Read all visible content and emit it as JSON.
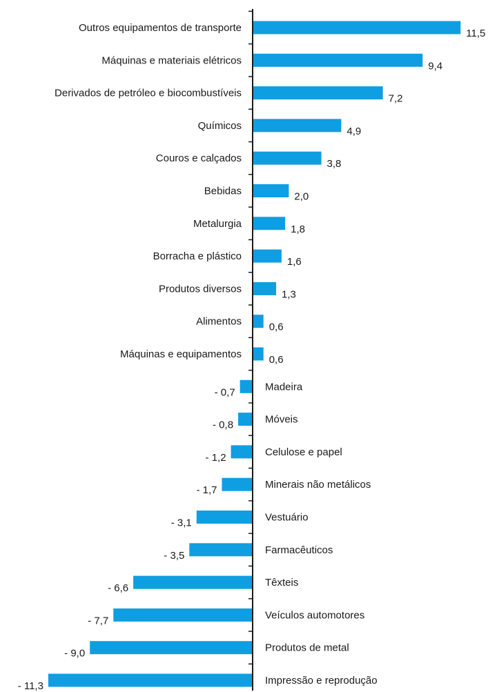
{
  "chart_data": {
    "type": "bar",
    "orientation": "horizontal",
    "bar_color": "#0f9ee1",
    "axis_color": "#1a1a1a",
    "title": "",
    "xlabel": "",
    "ylabel": "",
    "grid": false,
    "xlim": [
      -11.3,
      11.5
    ],
    "categories": [
      "Outros equipamentos de transporte",
      "Máquinas e materiais elétricos",
      "Derivados de petróleo e biocombustíveis",
      "Químicos",
      "Couros e calçados",
      "Bebidas",
      "Metalurgia",
      "Borracha e plástico",
      "Produtos diversos",
      "Alimentos",
      "Máquinas e equipamentos",
      "Madeira",
      "Móveis",
      "Celulose e papel",
      "Minerais não metálicos",
      "Vestuário",
      "Farmacêuticos",
      "Têxteis",
      "Veículos automotores",
      "Produtos de metal",
      "Impressão e reprodução"
    ],
    "values": [
      11.5,
      9.4,
      7.2,
      4.9,
      3.8,
      2.0,
      1.8,
      1.6,
      1.3,
      0.6,
      0.6,
      -0.7,
      -0.8,
      -1.2,
      -1.7,
      -3.1,
      -3.5,
      -6.6,
      -7.7,
      -9.0,
      -11.3
    ],
    "value_labels": [
      "11,5",
      "9,4",
      "7,2",
      "4,9",
      "3,8",
      "2,0",
      "1,8",
      "1,6",
      "1,3",
      "0,6",
      "0,6",
      "- 0,7",
      "- 0,8",
      "- 1,2",
      "- 1,7",
      "- 3,1",
      "- 3,5",
      "- 6,6",
      "- 7,7",
      "- 9,0",
      "- 11,3"
    ]
  }
}
